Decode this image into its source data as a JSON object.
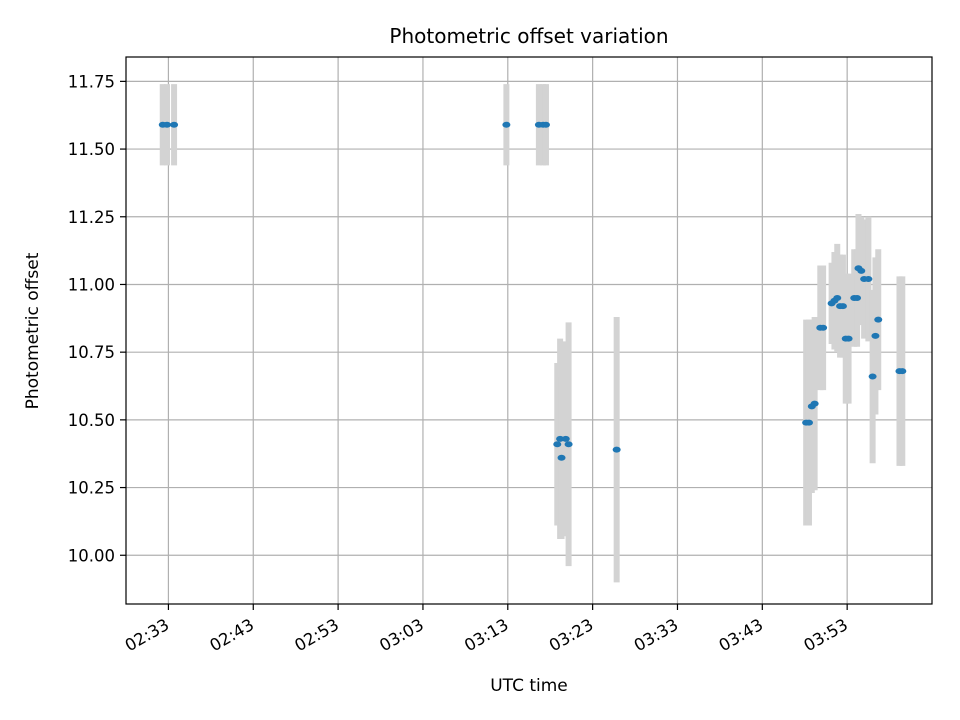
{
  "chart_data": {
    "type": "scatter",
    "title": "Photometric offset variation",
    "xlabel": "UTC time",
    "ylabel": "Photometric offset",
    "x_ticks": [
      "02:33",
      "02:43",
      "02:53",
      "03:03",
      "03:13",
      "03:23",
      "03:33",
      "03:43",
      "03:53"
    ],
    "y_ticks": [
      "10.00",
      "10.25",
      "10.50",
      "10.75",
      "11.00",
      "11.25",
      "11.50",
      "11.75"
    ],
    "xlim": [
      "02:28",
      "04:03"
    ],
    "ylim": [
      9.82,
      11.84
    ],
    "grid": true,
    "marker_color": "#1f77b4",
    "errorbar_color": "#d3d3d3",
    "points": [
      {
        "x": "02:32:20",
        "y": 11.59,
        "err": 0.15
      },
      {
        "x": "02:32:50",
        "y": 11.59,
        "err": 0.15
      },
      {
        "x": "02:33:40",
        "y": 11.59,
        "err": 0.15
      },
      {
        "x": "03:12:50",
        "y": 11.59,
        "err": 0.15
      },
      {
        "x": "03:16:40",
        "y": 11.59,
        "err": 0.15
      },
      {
        "x": "03:17:10",
        "y": 11.59,
        "err": 0.15
      },
      {
        "x": "03:17:30",
        "y": 11.59,
        "err": 0.15
      },
      {
        "x": "03:18:50",
        "y": 10.41,
        "err": 0.3
      },
      {
        "x": "03:19:10",
        "y": 10.43,
        "err": 0.37
      },
      {
        "x": "03:19:20",
        "y": 10.36,
        "err": 0.3
      },
      {
        "x": "03:19:50",
        "y": 10.43,
        "err": 0.36
      },
      {
        "x": "03:20:10",
        "y": 10.41,
        "err": 0.45
      },
      {
        "x": "03:25:50",
        "y": 10.39,
        "err": 0.49
      },
      {
        "x": "03:48:10",
        "y": 10.49,
        "err": 0.38
      },
      {
        "x": "03:48:30",
        "y": 10.49,
        "err": 0.38
      },
      {
        "x": "03:48:50",
        "y": 10.55,
        "err": 0.32
      },
      {
        "x": "03:49:10",
        "y": 10.56,
        "err": 0.32
      },
      {
        "x": "03:49:50",
        "y": 10.84,
        "err": 0.23
      },
      {
        "x": "03:50:10",
        "y": 10.84,
        "err": 0.23
      },
      {
        "x": "03:51:10",
        "y": 10.93,
        "err": 0.15
      },
      {
        "x": "03:51:30",
        "y": 10.94,
        "err": 0.18
      },
      {
        "x": "03:51:50",
        "y": 10.95,
        "err": 0.2
      },
      {
        "x": "03:52:10",
        "y": 10.92,
        "err": 0.19
      },
      {
        "x": "03:52:30",
        "y": 10.92,
        "err": 0.19
      },
      {
        "x": "03:52:50",
        "y": 10.8,
        "err": 0.24
      },
      {
        "x": "03:53:10",
        "y": 10.8,
        "err": 0.24
      },
      {
        "x": "03:53:50",
        "y": 10.95,
        "err": 0.18
      },
      {
        "x": "03:54:10",
        "y": 10.95,
        "err": 0.18
      },
      {
        "x": "03:54:20",
        "y": 11.06,
        "err": 0.2
      },
      {
        "x": "03:54:40",
        "y": 11.05,
        "err": 0.2
      },
      {
        "x": "03:55:00",
        "y": 11.02,
        "err": 0.22
      },
      {
        "x": "03:55:30",
        "y": 11.02,
        "err": 0.23
      },
      {
        "x": "03:56:00",
        "y": 10.66,
        "err": 0.32
      },
      {
        "x": "03:56:20",
        "y": 10.81,
        "err": 0.29
      },
      {
        "x": "03:56:40",
        "y": 10.87,
        "err": 0.26
      },
      {
        "x": "03:59:10",
        "y": 10.68,
        "err": 0.35
      },
      {
        "x": "03:59:30",
        "y": 10.68,
        "err": 0.35
      }
    ]
  }
}
